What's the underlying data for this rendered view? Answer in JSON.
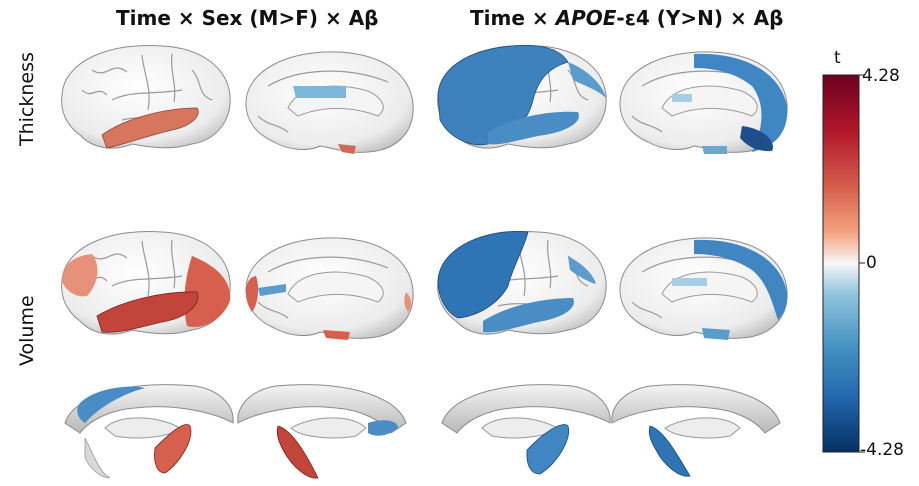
{
  "figure": {
    "titles": {
      "left": "Time × Sex (M>F) × Aβ",
      "right_prefix": "Time × ",
      "right_italic": "APOE",
      "right_suffix": "-ε4 (Y>N) × Aβ"
    },
    "row_labels": {
      "thickness": "Thickness",
      "volume": "Volume"
    },
    "colorbar": {
      "title": "t",
      "max_label": "4.28",
      "mid_label": "0",
      "min_label": "-4.28",
      "max": 4.28,
      "min": -4.28,
      "colors": [
        "#6e0020",
        "#b2182b",
        "#d6604d",
        "#f4a582",
        "#fddbc7",
        "#f7f7f7",
        "#d1e5f0",
        "#92c5de",
        "#4393c3",
        "#2166ac",
        "#053061"
      ]
    }
  }
}
